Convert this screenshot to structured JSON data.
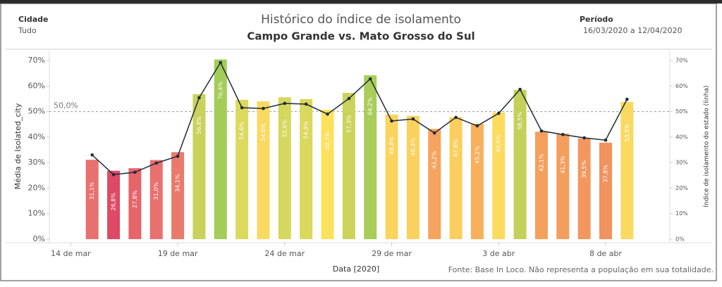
{
  "header": {
    "city_label": "Cidade",
    "city_value": "Tudo",
    "period_label": "Período",
    "period_value": "16/03/2020 a 12/04/2020"
  },
  "chart_data": {
    "type": "bar_line",
    "title": "Histórico do índice de isolamento",
    "subtitle": "Campo Grande vs. Mato Grosso do Sul",
    "x_label": "Data [2020]",
    "y_label": "Média de Isolated_city",
    "y2_label": "Índice de isolamento do estado (linha)",
    "note": "Fonte: Base In Loco. Não representa a população em sua totalidade.",
    "x": [
      "2020-03-15",
      "2020-03-16",
      "2020-03-17",
      "2020-03-18",
      "2020-03-19",
      "2020-03-20",
      "2020-03-21",
      "2020-03-22",
      "2020-03-23",
      "2020-03-24",
      "2020-03-25",
      "2020-03-26",
      "2020-03-27",
      "2020-03-28",
      "2020-03-29",
      "2020-03-30",
      "2020-03-31",
      "2020-04-01",
      "2020-04-02",
      "2020-04-03",
      "2020-04-04",
      "2020-04-05",
      "2020-04-06",
      "2020-04-07",
      "2020-04-08",
      "2020-04-09"
    ],
    "xlim": [
      "2020-03-13",
      "2020-04-11"
    ],
    "xticks": [
      {
        "value": "2020-03-14",
        "label": "14 de mar"
      },
      {
        "value": "2020-03-19",
        "label": "19 de mar"
      },
      {
        "value": "2020-03-24",
        "label": "24 de mar"
      },
      {
        "value": "2020-03-29",
        "label": "29 de mar"
      },
      {
        "value": "2020-04-03",
        "label": "3 de abr"
      },
      {
        "value": "2020-04-08",
        "label": "8 de abr"
      }
    ],
    "series": [
      {
        "name": "Média de Isolated_city",
        "values": [
          31.1,
          26.8,
          27.8,
          31.0,
          34.1,
          56.8,
          70.4,
          54.6,
          54.0,
          55.6,
          54.9,
          50.7,
          57.3,
          64.2,
          48.8,
          48.3,
          43.2,
          47.8,
          45.2,
          49.6,
          58.5,
          42.1,
          41.3,
          39.5,
          37.8,
          53.8
        ],
        "value_labels": [
          "31,1%",
          "26,8%",
          "27,8%",
          "31,0%",
          "34,1%",
          "56,8%",
          "70,4%",
          "54,6%",
          "54,0%",
          "55,6%",
          "54,9%",
          "50,7%",
          "57,3%",
          "64,2%",
          "48,8%",
          "48,3%",
          "43,2%",
          "47,8%",
          "45,2%",
          "49,6%",
          "58,5%",
          "42,1%",
          "41,3%",
          "39,5%",
          "37,8%",
          "53,8%"
        ],
        "colors": [
          "#e8706e",
          "#de4a66",
          "#e5656a",
          "#e8706e",
          "#ea7a6c",
          "#c9d25b",
          "#a3cd57",
          "#dcd95f",
          "#fad961",
          "#d6d75d",
          "#dbd85e",
          "#fde15d",
          "#cbd35b",
          "#a8ce57",
          "#fbd45f",
          "#fbd15e",
          "#f6a35d",
          "#fbcf5e",
          "#f8b05c",
          "#fcdb5f",
          "#c3d15a",
          "#f4a05d",
          "#f49e5e",
          "#f2985f",
          "#f1925f",
          "#fad961"
        ]
      },
      {
        "name": "Índice de isolamento do estado",
        "axis": "y2",
        "color": "#1e2b3a",
        "values": [
          33.0,
          25.3,
          26.2,
          29.8,
          32.5,
          55.4,
          69.2,
          51.5,
          51.2,
          53.2,
          52.9,
          49.0,
          55.1,
          62.8,
          46.3,
          47.1,
          41.6,
          47.7,
          44.4,
          49.3,
          58.7,
          42.4,
          41.0,
          39.7,
          38.8,
          54.8
        ]
      }
    ],
    "ylim": [
      0,
      70
    ],
    "yticks": [
      {
        "value": 0,
        "label": "0%"
      },
      {
        "value": 10,
        "label": "10%"
      },
      {
        "value": 20,
        "label": "20%"
      },
      {
        "value": 30,
        "label": "30%"
      },
      {
        "value": 40,
        "label": "40%"
      },
      {
        "value": 50,
        "label": "50%"
      },
      {
        "value": 60,
        "label": "60%"
      },
      {
        "value": 70,
        "label": "70%"
      }
    ],
    "y2lim": [
      0,
      70
    ],
    "y2ticks": [
      {
        "value": 0,
        "label": "0%"
      },
      {
        "value": 10,
        "label": "10%"
      },
      {
        "value": 20,
        "label": "20%"
      },
      {
        "value": 30,
        "label": "30%"
      },
      {
        "value": 40,
        "label": "40%"
      },
      {
        "value": 50,
        "label": "50%"
      },
      {
        "value": 60,
        "label": "60%"
      },
      {
        "value": 70,
        "label": "70%"
      }
    ],
    "reference_line": {
      "value": 50,
      "label": "50,0%"
    }
  }
}
